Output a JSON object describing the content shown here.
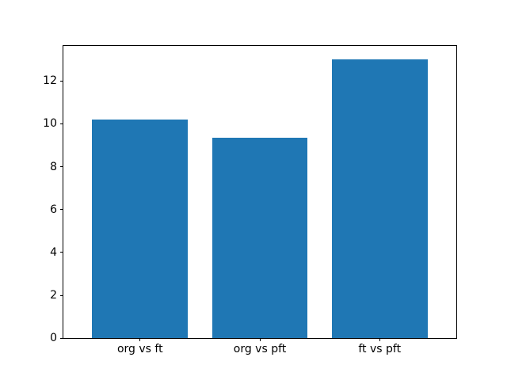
{
  "figure": {
    "background": "#ffffff"
  },
  "chart_data": {
    "type": "bar",
    "title": "",
    "xlabel": "",
    "ylabel": "",
    "categories": [
      "org vs ft",
      "org vs pft",
      "ft vs pft"
    ],
    "values": [
      10.2,
      9.35,
      13.0
    ],
    "yticks": [
      0,
      2,
      4,
      6,
      8,
      10,
      12
    ],
    "ylim": [
      0,
      13.65
    ],
    "bar_color": "#1f77b4",
    "bar_width": 0.8,
    "axis_color": "#000000",
    "grid": false,
    "legend": null
  }
}
